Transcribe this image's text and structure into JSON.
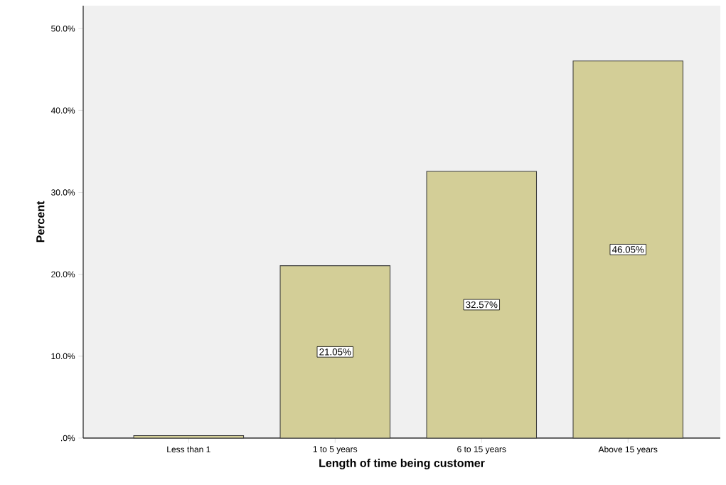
{
  "chart_data": {
    "type": "bar",
    "xlabel": "Length of time being customer",
    "ylabel": "Percent",
    "categories": [
      "Less than 1",
      "1 to 5 years",
      "6 to 15 years",
      "Above 15 years"
    ],
    "values": [
      0.3,
      21.05,
      32.57,
      46.05
    ],
    "value_labels": [
      null,
      "21.05%",
      "32.57%",
      "46.05%"
    ],
    "color": "#d3ce97",
    "ylim": [
      0,
      52.8
    ],
    "yticks": [
      {
        "value": 0,
        "label": ".0%"
      },
      {
        "value": 10,
        "label": "10.0%"
      },
      {
        "value": 20,
        "label": "20.0%"
      },
      {
        "value": 30,
        "label": "30.0%"
      },
      {
        "value": 40,
        "label": "40.0%"
      },
      {
        "value": 50,
        "label": "50.0%"
      }
    ],
    "grid": false
  }
}
